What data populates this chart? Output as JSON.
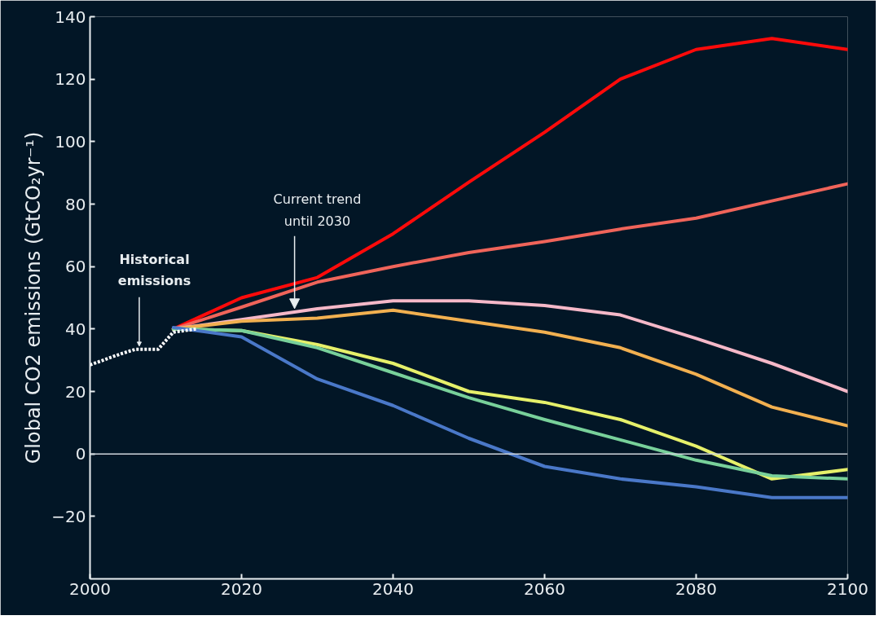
{
  "chart_data": {
    "type": "line",
    "ylabel": "Global CO2 emissions (GtCO₂yr⁻¹)",
    "xlim": [
      2000,
      2100
    ],
    "xticks": [
      2000,
      2020,
      2040,
      2060,
      2080,
      2100
    ],
    "ylim": [
      -40,
      140
    ],
    "yticks": [
      -20,
      0,
      20,
      40,
      60,
      80,
      100,
      120,
      140
    ],
    "grid": false,
    "line_style": "solid",
    "marker": "none",
    "ref_lines": [
      {
        "axis": "y",
        "value": 0,
        "color": "#cfd6dc"
      }
    ],
    "annotations": [
      {
        "text": "Historical\nemissions",
        "x": 2006.5,
        "y": 34
      },
      {
        "text": "Current trend\nuntil 2030",
        "x": 2027,
        "y": 46
      }
    ],
    "series": [
      {
        "color": "#ffffff",
        "line_style": "dotted",
        "x": [
          2000,
          2004,
          2006,
          2009,
          2011,
          2014
        ],
        "values": [
          28.5,
          32,
          33.5,
          33.5,
          39,
          40
        ]
      },
      {
        "color": "#ff0a0a",
        "x": [
          2011,
          2020,
          2030,
          2040,
          2050,
          2060,
          2070,
          2080,
          2090,
          2100
        ],
        "values": [
          40,
          50,
          56.5,
          70.5,
          87,
          103,
          120,
          129.5,
          133,
          129.5
        ]
      },
      {
        "color": "#f0645a",
        "x": [
          2011,
          2020,
          2030,
          2040,
          2050,
          2060,
          2070,
          2080,
          2090,
          2100
        ],
        "values": [
          40,
          47,
          55,
          60,
          64.5,
          68,
          72,
          75.5,
          81,
          86.5
        ]
      },
      {
        "color": "#f5b8c8",
        "x": [
          2011,
          2020,
          2030,
          2040,
          2050,
          2060,
          2070,
          2080,
          2090,
          2100
        ],
        "values": [
          40,
          43,
          46.5,
          49,
          49,
          47.5,
          44.5,
          37,
          29,
          20
        ]
      },
      {
        "color": "#f2b050",
        "x": [
          2011,
          2020,
          2030,
          2040,
          2050,
          2060,
          2070,
          2080,
          2090,
          2100
        ],
        "values": [
          40,
          42.5,
          43.5,
          46,
          42.5,
          39,
          34,
          25.5,
          15,
          9
        ]
      },
      {
        "color": "#e6f06a",
        "x": [
          2011,
          2020,
          2030,
          2040,
          2050,
          2060,
          2070,
          2080,
          2090,
          2100
        ],
        "values": [
          40,
          39.5,
          35,
          29,
          20,
          16.5,
          11,
          2.5,
          -8,
          -5
        ]
      },
      {
        "color": "#78d09a",
        "x": [
          2011,
          2020,
          2030,
          2040,
          2050,
          2060,
          2070,
          2080,
          2090,
          2100
        ],
        "values": [
          40,
          39.5,
          34,
          26,
          18,
          11,
          4.5,
          -2,
          -7,
          -8
        ]
      },
      {
        "color": "#4a78c8",
        "x": [
          2011,
          2020,
          2030,
          2040,
          2050,
          2060,
          2070,
          2080,
          2090,
          2100
        ],
        "values": [
          40.5,
          37.5,
          24,
          15.5,
          5,
          -4,
          -8,
          -10.5,
          -14,
          -14
        ]
      }
    ]
  }
}
